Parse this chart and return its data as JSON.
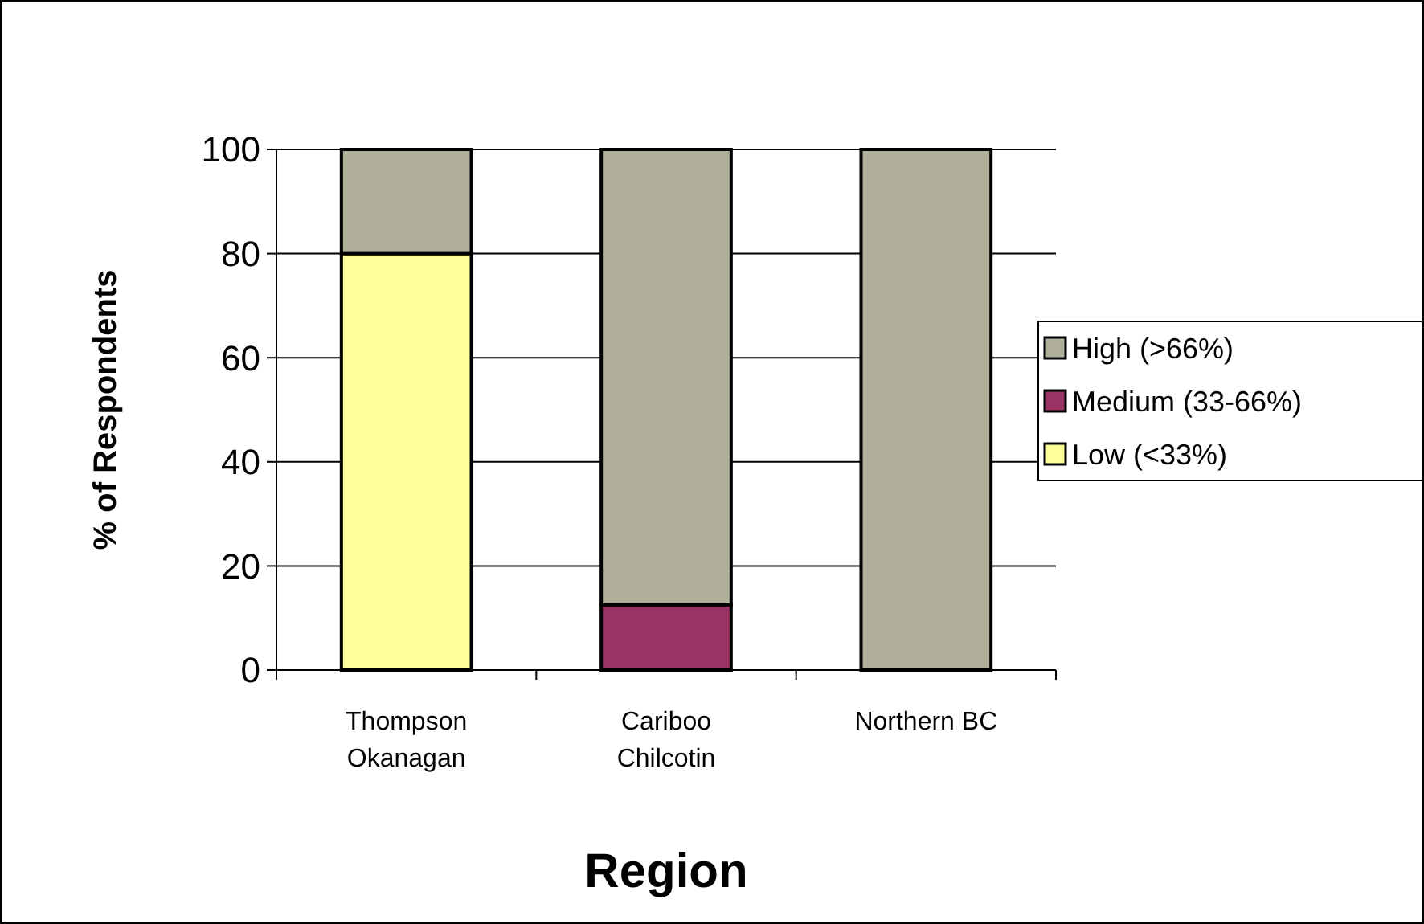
{
  "chart_data": {
    "type": "bar",
    "stacked": true,
    "xlabel": "Region",
    "ylabel": "% of Respondents",
    "categories": [
      "Thompson\nOkanagan",
      "Cariboo\nChilcotin",
      "Northern BC"
    ],
    "series": [
      {
        "name": "Low (<33%)",
        "color": "#ffff99",
        "values": [
          80,
          0,
          0
        ]
      },
      {
        "name": "Medium (33-66%)",
        "color": "#993366",
        "values": [
          0,
          12.5,
          0
        ]
      },
      {
        "name": "High (>66%)",
        "color": "#b0b09a",
        "values": [
          20,
          87.5,
          100
        ]
      }
    ],
    "ylim": [
      0,
      100
    ],
    "yticks": [
      0,
      20,
      40,
      60,
      80,
      100
    ],
    "grid": "y",
    "legend": "right"
  }
}
